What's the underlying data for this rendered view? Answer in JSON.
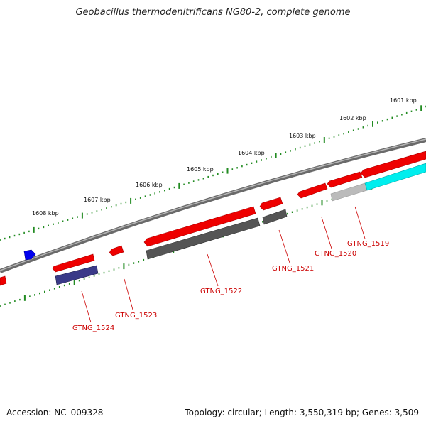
{
  "title": "Geobacillus thermodenitrificans NG80-2, complete genome",
  "footer": {
    "accession": "Accession: NC_009328",
    "summary": "Topology: circular; Length: 3,550,319 bp; Genes: 3,509"
  },
  "colors": {
    "backbone": "#7a7a7a",
    "forward_gene": "#ee0000",
    "gray_feature": "#555555",
    "light_gray_feature": "#bbbbbb",
    "cyan_feature": "#00eeee",
    "indigo_feature": "#3a3a88",
    "blue_marker": "#0000ee",
    "tick_color": "#228b22",
    "gene_label_color": "#cc0000"
  },
  "scale": {
    "labels": [
      "1601 kbp",
      "1602 kbp",
      "1603 kbp",
      "1604 kbp",
      "1605 kbp",
      "1606 kbp",
      "1607 kbp",
      "1608 kbp"
    ]
  },
  "gene_labels": [
    "GTNG_1519",
    "GTNG_1520",
    "GTNG_1521",
    "GTNG_1522",
    "GTNG_1523",
    "GTNG_1524"
  ]
}
